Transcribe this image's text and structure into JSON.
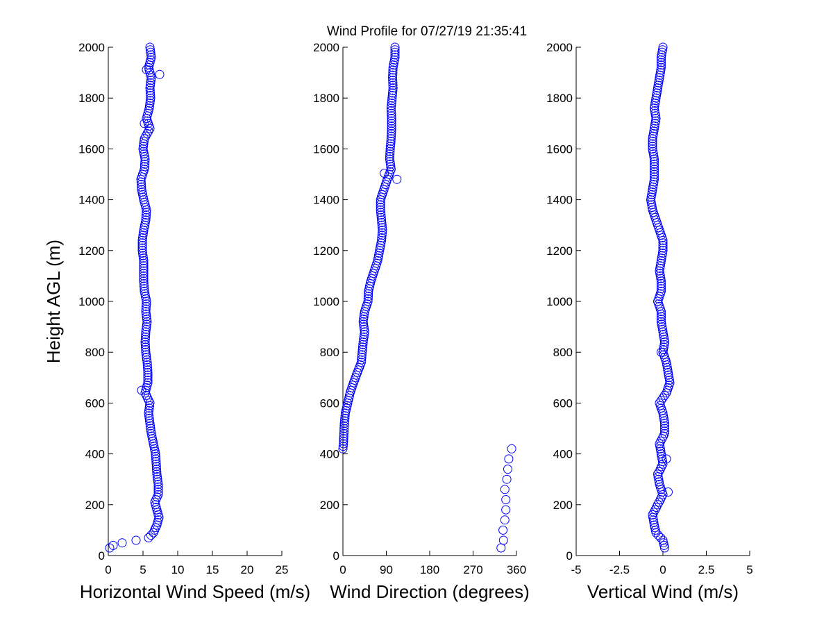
{
  "figure": {
    "title": "Wind Profile for  07/27/19 21:35:41",
    "background": "#ffffff",
    "marker_color": "#0000ff"
  },
  "chart_data": [
    {
      "type": "scatter",
      "marker": "circle-open",
      "xlabel": "Horizontal Wind Speed (m/s)",
      "ylabel": "Height AGL (m)",
      "xlim": [
        0,
        25
      ],
      "ylim": [
        0,
        2000
      ],
      "xticks": [
        0,
        5,
        10,
        15,
        20,
        25
      ],
      "xtick_labels": [
        "0",
        "5",
        "10",
        "15",
        "20",
        "25"
      ],
      "yticks": [
        0,
        200,
        400,
        600,
        800,
        1000,
        1200,
        1400,
        1600,
        1800,
        2000
      ],
      "ytick_labels": [
        "0",
        "200",
        "400",
        "600",
        "800",
        "1000",
        "1200",
        "1400",
        "1600",
        "1800",
        "2000"
      ],
      "profile": [
        [
          0.2,
          30
        ],
        [
          0.7,
          40
        ],
        [
          2.0,
          50
        ],
        [
          4.0,
          60
        ],
        [
          5.8,
          70
        ],
        [
          6.5,
          90
        ],
        [
          7.0,
          120
        ],
        [
          7.3,
          150
        ],
        [
          7.0,
          180
        ],
        [
          6.7,
          210
        ],
        [
          7.2,
          240
        ],
        [
          7.2,
          280
        ],
        [
          7.0,
          320
        ],
        [
          6.9,
          360
        ],
        [
          6.8,
          400
        ],
        [
          6.5,
          440
        ],
        [
          6.2,
          480
        ],
        [
          6.0,
          520
        ],
        [
          5.8,
          560
        ],
        [
          6.0,
          600
        ],
        [
          5.3,
          640
        ],
        [
          5.7,
          680
        ],
        [
          5.7,
          720
        ],
        [
          5.6,
          760
        ],
        [
          5.4,
          800
        ],
        [
          5.3,
          840
        ],
        [
          5.4,
          880
        ],
        [
          5.6,
          920
        ],
        [
          5.4,
          960
        ],
        [
          5.5,
          1000
        ],
        [
          5.2,
          1040
        ],
        [
          5.1,
          1080
        ],
        [
          5.1,
          1120
        ],
        [
          5.1,
          1160
        ],
        [
          4.9,
          1200
        ],
        [
          4.9,
          1240
        ],
        [
          5.1,
          1280
        ],
        [
          5.4,
          1320
        ],
        [
          5.5,
          1360
        ],
        [
          5.1,
          1400
        ],
        [
          4.8,
          1440
        ],
        [
          4.7,
          1480
        ],
        [
          5.2,
          1520
        ],
        [
          5.3,
          1560
        ],
        [
          5.0,
          1600
        ],
        [
          5.2,
          1640
        ],
        [
          6.0,
          1680
        ],
        [
          5.5,
          1720
        ],
        [
          5.9,
          1760
        ],
        [
          6.1,
          1800
        ],
        [
          6.0,
          1840
        ],
        [
          6.2,
          1880
        ],
        [
          5.8,
          1920
        ],
        [
          6.2,
          1960
        ],
        [
          6.0,
          2000
        ]
      ],
      "extra_points": [
        [
          5.2,
          1700
        ],
        [
          7.4,
          1893
        ],
        [
          5.5,
          1912
        ],
        [
          4.8,
          650
        ]
      ]
    },
    {
      "type": "scatter",
      "marker": "circle-open",
      "xlabel": "Wind Direction (degrees)",
      "xlim": [
        0,
        360
      ],
      "ylim": [
        0,
        2000
      ],
      "xticks": [
        0,
        90,
        180,
        270,
        360
      ],
      "xtick_labels": [
        "0",
        "90",
        "180",
        "270",
        "360"
      ],
      "yticks": [
        0,
        200,
        400,
        600,
        800,
        1000,
        1200,
        1400,
        1600,
        1800,
        2000
      ],
      "ytick_labels": [
        "0",
        "200",
        "400",
        "600",
        "800",
        "1000",
        "1200",
        "1400",
        "1600",
        "1800",
        "2000"
      ],
      "profile": [
        [
          0,
          420
        ],
        [
          1,
          440
        ],
        [
          2,
          480
        ],
        [
          3,
          520
        ],
        [
          5,
          560
        ],
        [
          10,
          600
        ],
        [
          15,
          640
        ],
        [
          22,
          680
        ],
        [
          30,
          720
        ],
        [
          38,
          760
        ],
        [
          40,
          800
        ],
        [
          42,
          840
        ],
        [
          45,
          880
        ],
        [
          42,
          920
        ],
        [
          45,
          960
        ],
        [
          52,
          1000
        ],
        [
          53,
          1040
        ],
        [
          58,
          1080
        ],
        [
          65,
          1120
        ],
        [
          72,
          1160
        ],
        [
          76,
          1200
        ],
        [
          80,
          1240
        ],
        [
          82,
          1280
        ],
        [
          80,
          1320
        ],
        [
          78,
          1360
        ],
        [
          78,
          1400
        ],
        [
          85,
          1440
        ],
        [
          92,
          1480
        ],
        [
          100,
          1520
        ],
        [
          97,
          1560
        ],
        [
          98,
          1600
        ],
        [
          100,
          1640
        ],
        [
          101,
          1680
        ],
        [
          101,
          1720
        ],
        [
          100,
          1760
        ],
        [
          102,
          1800
        ],
        [
          104,
          1840
        ],
        [
          103,
          1880
        ],
        [
          104,
          1920
        ],
        [
          108,
          1960
        ],
        [
          108,
          2000
        ]
      ],
      "extra_points": [
        [
          112,
          1480
        ],
        [
          86,
          1504
        ],
        [
          328,
          30
        ],
        [
          333,
          60
        ],
        [
          332,
          100
        ],
        [
          336,
          140
        ],
        [
          338,
          180
        ],
        [
          338,
          220
        ],
        [
          336,
          260
        ],
        [
          340,
          300
        ],
        [
          342,
          340
        ],
        [
          344,
          380
        ],
        [
          350,
          420
        ]
      ]
    },
    {
      "type": "scatter",
      "marker": "circle-open",
      "xlabel": "Vertical Wind (m/s)",
      "xlim": [
        -5,
        5
      ],
      "ylim": [
        0,
        2000
      ],
      "xticks": [
        -5,
        -2.5,
        0,
        2.5,
        5
      ],
      "xtick_labels": [
        "-5",
        "-2.5",
        "0",
        "2.5",
        "5"
      ],
      "yticks": [
        0,
        200,
        400,
        600,
        800,
        1000,
        1200,
        1400,
        1600,
        1800,
        2000
      ],
      "ytick_labels": [
        "0",
        "200",
        "400",
        "600",
        "800",
        "1000",
        "1200",
        "1400",
        "1600",
        "1800",
        "2000"
      ],
      "profile": [
        [
          0.1,
          30
        ],
        [
          0.0,
          60
        ],
        [
          -0.4,
          90
        ],
        [
          -0.5,
          120
        ],
        [
          -0.6,
          160
        ],
        [
          -0.3,
          200
        ],
        [
          0.0,
          240
        ],
        [
          -0.2,
          280
        ],
        [
          -0.3,
          320
        ],
        [
          0.0,
          360
        ],
        [
          -0.1,
          400
        ],
        [
          -0.2,
          440
        ],
        [
          0.1,
          480
        ],
        [
          0.1,
          520
        ],
        [
          0.0,
          560
        ],
        [
          -0.2,
          600
        ],
        [
          0.2,
          640
        ],
        [
          0.4,
          680
        ],
        [
          0.3,
          720
        ],
        [
          0.2,
          760
        ],
        [
          0.0,
          800
        ],
        [
          0.1,
          840
        ],
        [
          0.0,
          880
        ],
        [
          -0.1,
          920
        ],
        [
          -0.1,
          960
        ],
        [
          -0.3,
          1000
        ],
        [
          -0.1,
          1040
        ],
        [
          -0.1,
          1080
        ],
        [
          -0.2,
          1120
        ],
        [
          -0.1,
          1160
        ],
        [
          0.0,
          1200
        ],
        [
          0.0,
          1240
        ],
        [
          -0.2,
          1280
        ],
        [
          -0.4,
          1320
        ],
        [
          -0.6,
          1360
        ],
        [
          -0.7,
          1400
        ],
        [
          -0.6,
          1440
        ],
        [
          -0.5,
          1480
        ],
        [
          -0.5,
          1520
        ],
        [
          -0.5,
          1560
        ],
        [
          -0.6,
          1600
        ],
        [
          -0.6,
          1640
        ],
        [
          -0.5,
          1680
        ],
        [
          -0.4,
          1720
        ],
        [
          -0.5,
          1760
        ],
        [
          -0.4,
          1800
        ],
        [
          -0.3,
          1840
        ],
        [
          -0.2,
          1880
        ],
        [
          -0.1,
          1920
        ],
        [
          -0.1,
          1960
        ],
        [
          0.0,
          2000
        ]
      ],
      "extra_points": [
        [
          -0.1,
          800
        ],
        [
          0.2,
          380
        ],
        [
          0.3,
          250
        ]
      ]
    }
  ]
}
